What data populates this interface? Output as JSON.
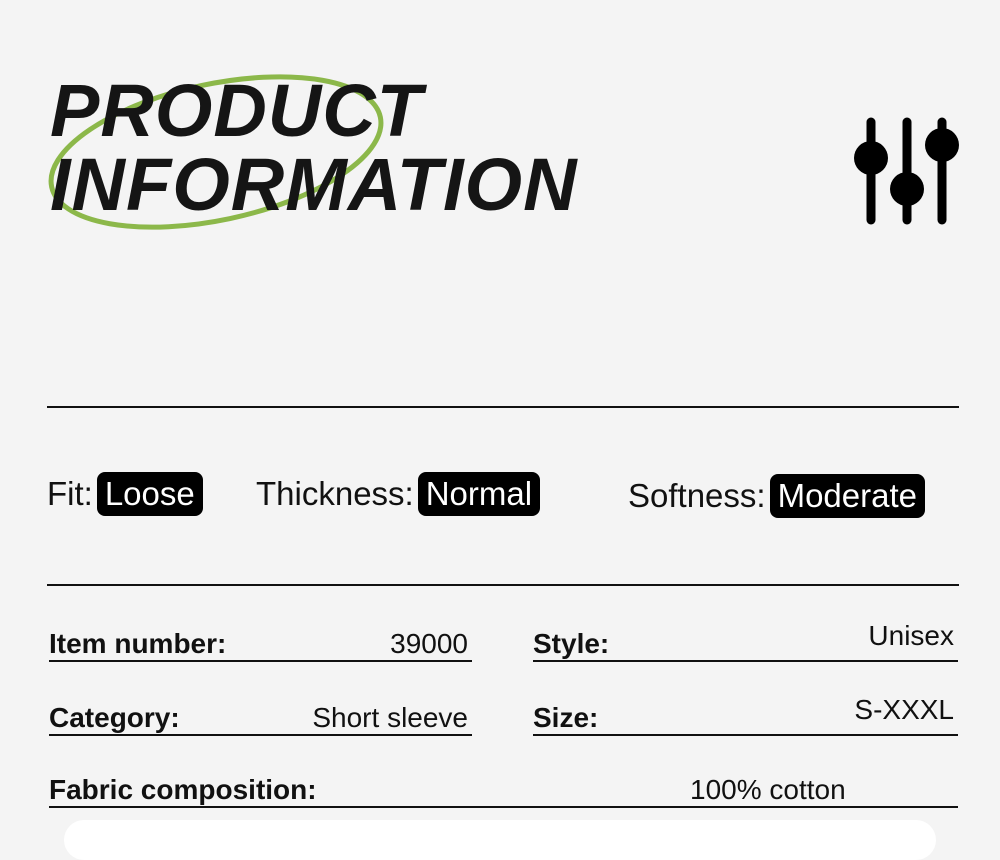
{
  "header": {
    "title_line1": "PRODUCT",
    "title_line2": "INFORMATION",
    "accent_color": "#8cb84a",
    "icon": "sliders-icon"
  },
  "attributes": [
    {
      "label": "Fit:",
      "value": "Loose"
    },
    {
      "label": "Thickness:",
      "value": "Normal"
    },
    {
      "label": "Softness:",
      "value": "Moderate"
    }
  ],
  "details": {
    "item_number": {
      "label": "Item number:",
      "value": "39000"
    },
    "style": {
      "label": "Style:",
      "value": "Unisex"
    },
    "category": {
      "label": "Category:",
      "value": "Short sleeve"
    },
    "size": {
      "label": "Size:",
      "value": "S-XXXL"
    },
    "fabric": {
      "label": "Fabric composition:",
      "value": "100% cotton"
    }
  }
}
